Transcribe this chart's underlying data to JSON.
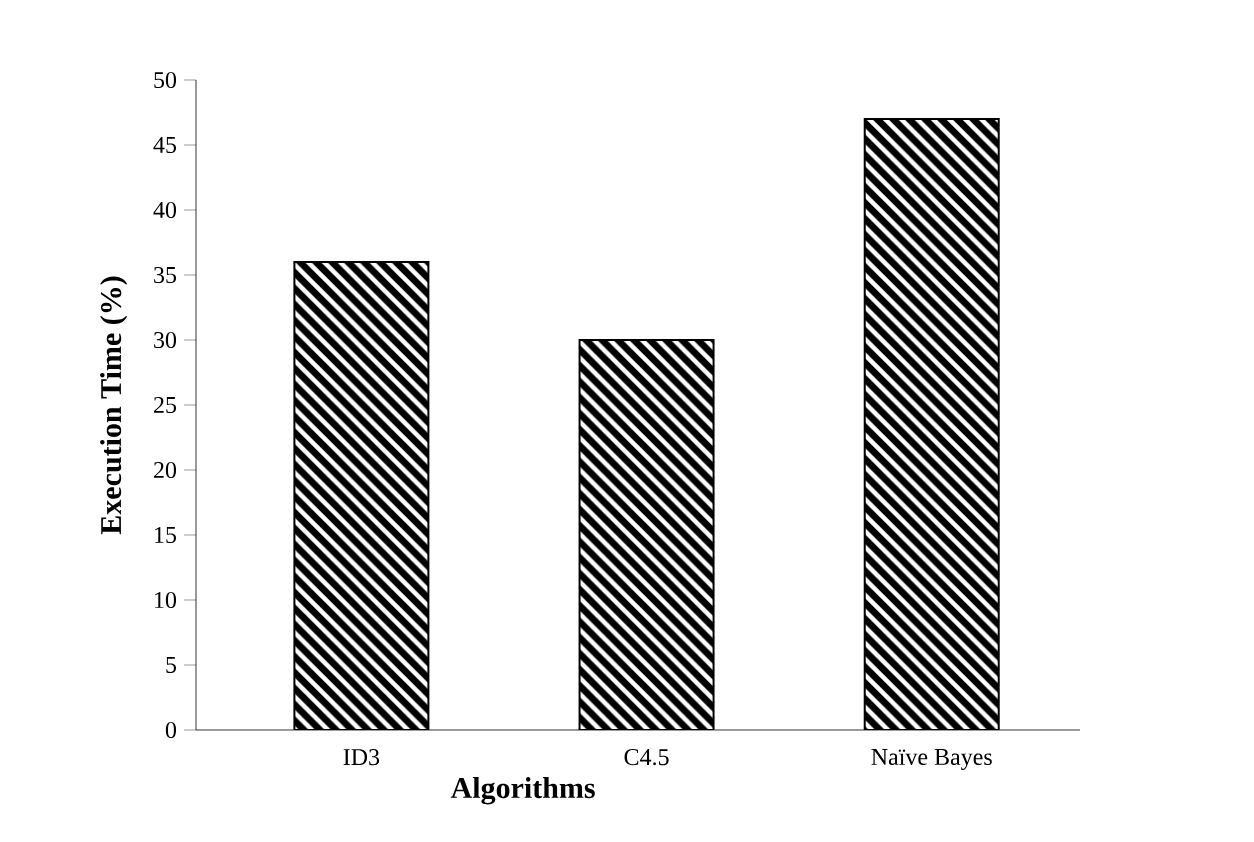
{
  "chart_data": {
    "type": "bar",
    "xlabel": "Algorithms",
    "ylabel": "Execution Time (%)",
    "categories": [
      "ID3",
      "C4.5",
      "Naïve Bayes"
    ],
    "values": [
      36,
      30,
      47
    ],
    "color": "#000000",
    "ylim": [
      0,
      50
    ],
    "yticks": [
      0,
      5,
      10,
      15,
      20,
      25,
      30,
      35,
      40,
      45,
      50
    ]
  }
}
